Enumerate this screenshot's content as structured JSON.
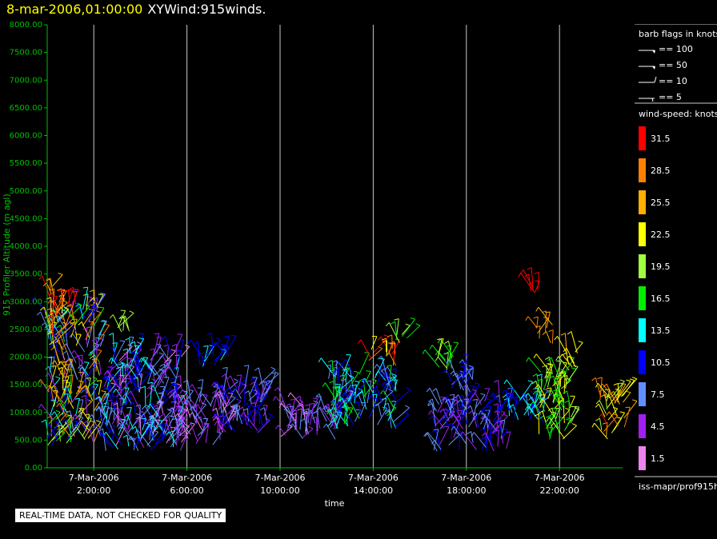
{
  "header": {
    "datetime": "8-mar-2006,01:00:00",
    "title": "XYWind:915winds."
  },
  "colors": {
    "axis": "#00c000",
    "text": "#ffffff",
    "date_title": "#ffff00",
    "gridline": "#c8c8c8",
    "background": "#000000"
  },
  "chart_data": {
    "type": "scatter",
    "subtype": "wind-barbs",
    "ylabel": "915 Profiler Altitude (m agl)",
    "xlabel": "time",
    "ylim": [
      0,
      8000
    ],
    "y_ticks": [
      "0.00",
      "500.00",
      "1000.00",
      "1500.00",
      "2000.00",
      "2500.00",
      "3000.00",
      "3500.00",
      "4000.00",
      "4500.00",
      "5000.00",
      "5500.00",
      "6000.00",
      "6500.00",
      "7000.00",
      "7500.00",
      "8000.00"
    ],
    "xlim_hours": [
      0,
      25
    ],
    "x_ticks": [
      {
        "hour": 2,
        "date": "7-Mar-2006",
        "time": "2:00:00"
      },
      {
        "hour": 6,
        "date": "7-Mar-2006",
        "time": "6:00:00"
      },
      {
        "hour": 10,
        "date": "7-Mar-2006",
        "time": "10:00:00"
      },
      {
        "hour": 14,
        "date": "7-Mar-2006",
        "time": "14:00:00"
      },
      {
        "hour": 18,
        "date": "7-Mar-2006",
        "time": "18:00:00"
      },
      {
        "hour": 22,
        "date": "7-Mar-2006",
        "time": "22:00:00"
      }
    ],
    "grid": "vertical",
    "wind_clusters": [
      {
        "hours": [
          0.0,
          2.3
        ],
        "alt": [
          400,
          2900
        ],
        "speed_knots": [
          4,
          30
        ]
      },
      {
        "hours": [
          0.1,
          0.7
        ],
        "alt": [
          2300,
          3300
        ],
        "speed_knots": [
          22,
          33
        ]
      },
      {
        "hours": [
          0.2,
          1.5
        ],
        "alt": [
          2900,
          3000
        ],
        "speed_knots": [
          31,
          33
        ]
      },
      {
        "hours": [
          2.3,
          5.8
        ],
        "alt": [
          300,
          2100
        ],
        "speed_knots": [
          2,
          14
        ]
      },
      {
        "hours": [
          3.0,
          3.7
        ],
        "alt": [
          2450,
          2550
        ],
        "speed_knots": [
          18,
          21
        ]
      },
      {
        "hours": [
          5.5,
          8.0
        ],
        "alt": [
          400,
          1200
        ],
        "speed_knots": [
          1,
          9
        ]
      },
      {
        "hours": [
          6.5,
          7.8
        ],
        "alt": [
          1800,
          2150
        ],
        "speed_knots": [
          9,
          15
        ]
      },
      {
        "hours": [
          7.5,
          9.5
        ],
        "alt": [
          600,
          1500
        ],
        "speed_knots": [
          3,
          12
        ]
      },
      {
        "hours": [
          10.0,
          12.5
        ],
        "alt": [
          500,
          1100
        ],
        "speed_knots": [
          2,
          8
        ]
      },
      {
        "hours": [
          12.0,
          15.0
        ],
        "alt": [
          700,
          1700
        ],
        "speed_knots": [
          6,
          18
        ]
      },
      {
        "hours": [
          13.8,
          15.0
        ],
        "alt": [
          1800,
          2150
        ],
        "speed_knots": [
          22,
          32
        ]
      },
      {
        "hours": [
          15.0,
          15.6
        ],
        "alt": [
          2200,
          2450
        ],
        "speed_knots": [
          16,
          21
        ]
      },
      {
        "hours": [
          16.5,
          17.5
        ],
        "alt": [
          1700,
          2050
        ],
        "speed_knots": [
          15,
          22
        ]
      },
      {
        "hours": [
          17.3,
          18.3
        ],
        "alt": [
          1200,
          1700
        ],
        "speed_knots": [
          7,
          11
        ]
      },
      {
        "hours": [
          16.6,
          19.8
        ],
        "alt": [
          300,
          1200
        ],
        "speed_knots": [
          3,
          11
        ]
      },
      {
        "hours": [
          19.8,
          21.3
        ],
        "alt": [
          800,
          1300
        ],
        "speed_knots": [
          8,
          15
        ]
      },
      {
        "hours": [
          21.0,
          22.5
        ],
        "alt": [
          500,
          1800
        ],
        "speed_knots": [
          15,
          24
        ]
      },
      {
        "hours": [
          21.0,
          21.7
        ],
        "alt": [
          2200,
          2600
        ],
        "speed_knots": [
          25,
          32
        ]
      },
      {
        "hours": [
          22.0,
          22.8
        ],
        "alt": [
          1800,
          2100
        ],
        "speed_knots": [
          21,
          25
        ]
      },
      {
        "hours": [
          20.7,
          21.3
        ],
        "alt": [
          3150,
          3300
        ],
        "speed_knots": [
          31,
          33
        ]
      },
      {
        "hours": [
          23.6,
          24.8
        ],
        "alt": [
          500,
          1300
        ],
        "speed_knots": [
          20,
          31
        ]
      }
    ],
    "legend": {
      "barb_title": "barb flags in knots",
      "barbs": [
        {
          "label": "== 100",
          "value": 100
        },
        {
          "label": "== 50",
          "value": 50
        },
        {
          "label": "== 10",
          "value": 10
        },
        {
          "label": "== 5",
          "value": 5
        }
      ],
      "speed_title": "wind-speed: knots",
      "color_bins": [
        {
          "label": "31.5",
          "color": "#ff0000"
        },
        {
          "label": "28.5",
          "color": "#ff8000"
        },
        {
          "label": "25.5",
          "color": "#ffb000"
        },
        {
          "label": "22.5",
          "color": "#ffff00"
        },
        {
          "label": "19.5",
          "color": "#a0ff40"
        },
        {
          "label": "16.5",
          "color": "#00ee00"
        },
        {
          "label": "13.5",
          "color": "#00ffff"
        },
        {
          "label": "10.5",
          "color": "#0000ff"
        },
        {
          "label": "7.5",
          "color": "#6090ff"
        },
        {
          "label": "4.5",
          "color": "#a020f0"
        },
        {
          "label": "1.5",
          "color": "#ee82ee"
        }
      ],
      "source": "iss-mapr/prof915h"
    }
  },
  "footer": {
    "quality_note": "REAL-TIME DATA, NOT CHECKED FOR QUALITY"
  }
}
